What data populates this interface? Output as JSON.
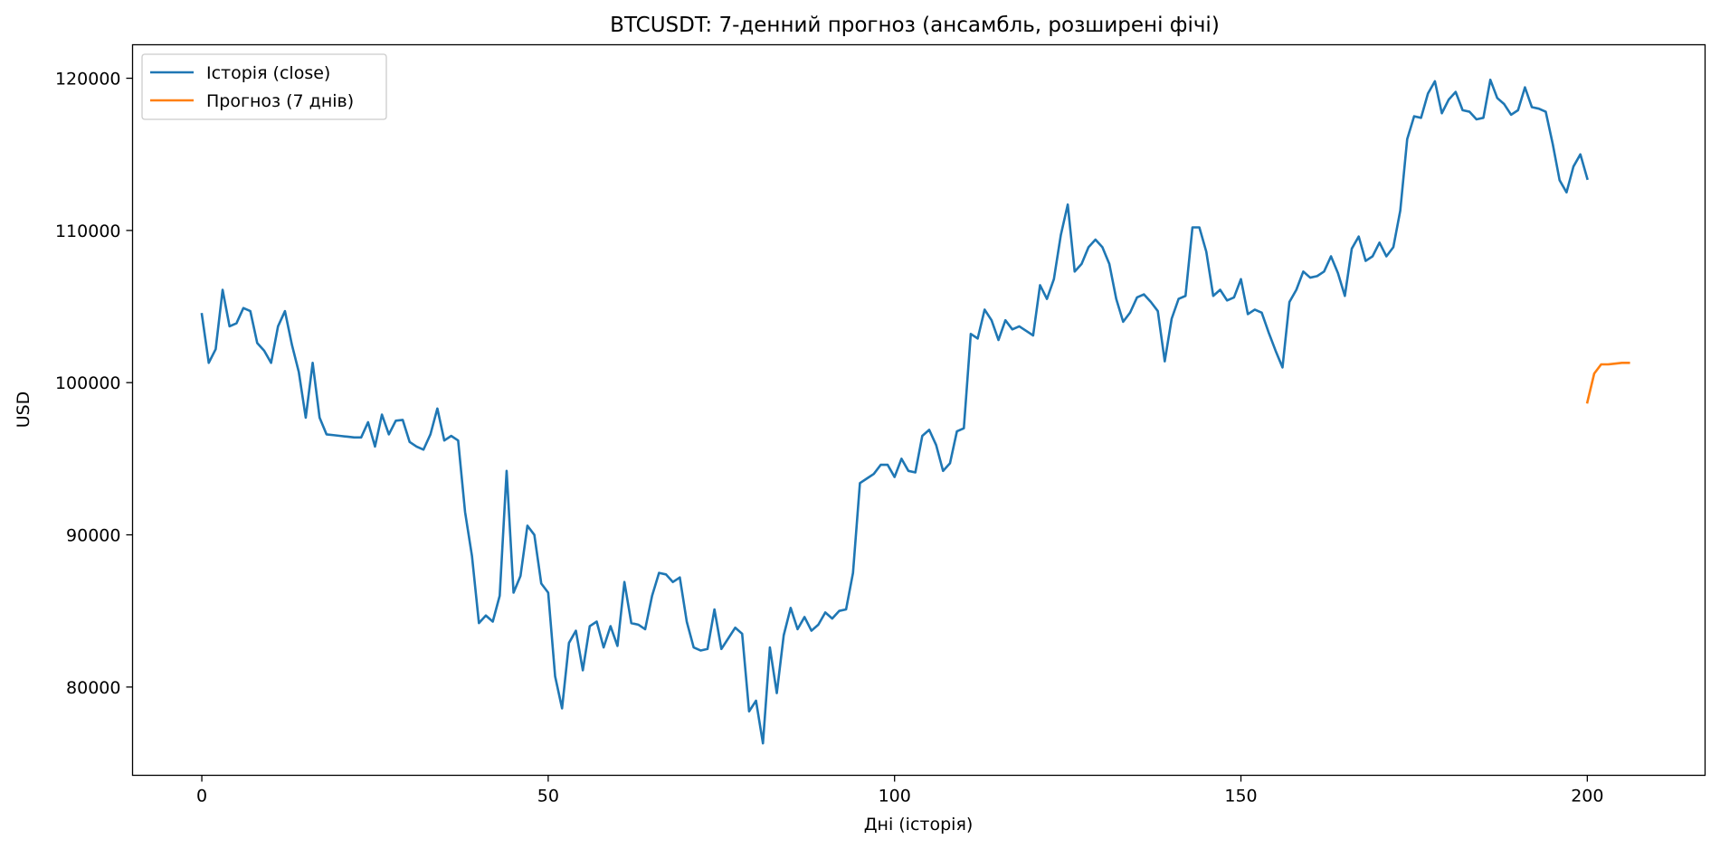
{
  "chart_data": {
    "type": "line",
    "title": "BTCUSDT: 7-денний прогноз (ансамбль, розширені фічі)",
    "xlabel": "Дні (історія)",
    "ylabel": "USD",
    "xlim": [
      -10,
      217
    ],
    "ylim": [
      74200,
      122200
    ],
    "xticks": [
      0,
      50,
      100,
      150,
      200
    ],
    "yticks": [
      80000,
      90000,
      100000,
      110000,
      120000
    ],
    "grid": false,
    "legend_position": "top-left",
    "series": [
      {
        "name": "Історія (close)",
        "color": "#1f77b4",
        "x_start": 0,
        "values": [
          104500,
          101300,
          102200,
          106100,
          103700,
          103900,
          104900,
          104700,
          102600,
          102100,
          101300,
          103700,
          104700,
          102500,
          100700,
          97700,
          101300,
          97700,
          96600,
          96550,
          96500,
          96450,
          96400,
          96400,
          97400,
          95800,
          97900,
          96600,
          97500,
          97550,
          96100,
          95800,
          95600,
          96600,
          98300,
          96200,
          96500,
          96200,
          91500,
          88600,
          84200,
          84700,
          84300,
          86000,
          94200,
          86200,
          87300,
          90600,
          90000,
          86800,
          86200,
          80700,
          78600,
          82900,
          83700,
          81100,
          84000,
          84300,
          82600,
          84000,
          82700,
          86900,
          84200,
          84100,
          83800,
          86000,
          87500,
          87400,
          86900,
          87200,
          84300,
          82600,
          82400,
          82500,
          85100,
          82500,
          83200,
          83900,
          83500,
          78400,
          79100,
          76300,
          82600,
          79600,
          83400,
          85200,
          83800,
          84600,
          83700,
          84100,
          84900,
          84500,
          85000,
          85100,
          87500,
          93400,
          93700,
          94000,
          94600,
          94600,
          93800,
          95000,
          94200,
          94100,
          96500,
          96900,
          95900,
          94200,
          94700,
          96800,
          97000,
          103200,
          102900,
          104800,
          104100,
          102800,
          104100,
          103500,
          103700,
          103400,
          103100,
          106400,
          105500,
          106800,
          109700,
          111700,
          107300,
          107800,
          108900,
          109400,
          108900,
          107800,
          105500,
          104000,
          104600,
          105600,
          105800,
          105300,
          104700,
          101400,
          104200,
          105500,
          105700,
          110200,
          110200,
          108600,
          105700,
          106100,
          105400,
          105600,
          106800,
          104500,
          104800,
          104600,
          103300,
          102100,
          101000,
          105300,
          106100,
          107300,
          106900,
          107000,
          107300,
          108300,
          107200,
          105700,
          108800,
          109600,
          108000,
          108300,
          109200,
          108300,
          108900,
          111300,
          116000,
          117500,
          117400,
          119000,
          119800,
          117700,
          118600,
          119100,
          117900,
          117800,
          117300,
          117400,
          119900,
          118700,
          118300,
          117600,
          117900,
          119400,
          118100,
          118000,
          117800,
          115700,
          113300,
          112500,
          114200,
          115000,
          113400
        ]
      },
      {
        "name": "Прогноз (7 днів)",
        "color": "#ff7f0e",
        "x_start": 200,
        "values": [
          98700,
          100600,
          101200,
          101200,
          101250,
          101300,
          101300
        ]
      }
    ]
  }
}
